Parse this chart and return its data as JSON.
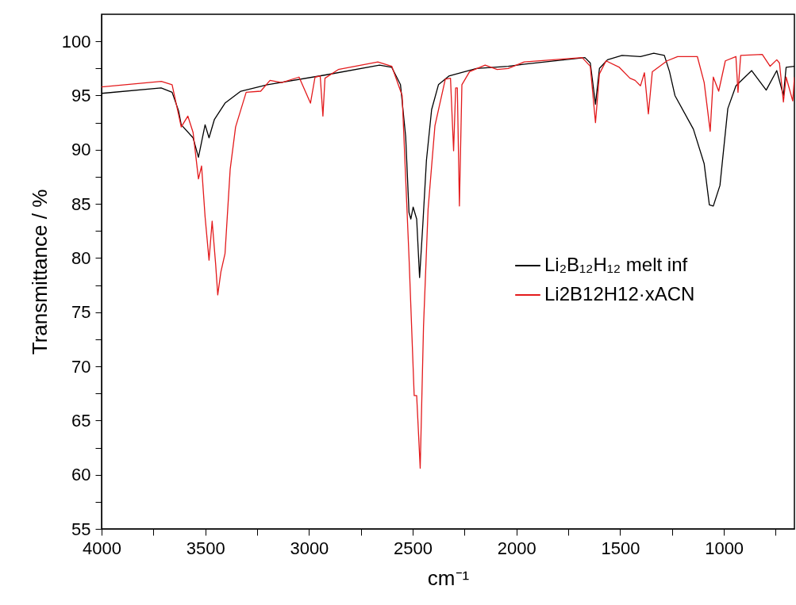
{
  "chart_data": {
    "type": "line",
    "xlabel": "cm⁻¹",
    "ylabel": "Transmittance / %",
    "xlim": [
      4000,
      660
    ],
    "ylim": [
      55,
      102.5
    ],
    "xticks": [
      4000,
      {
        "value": 3750,
        "label": null
      },
      3500,
      {
        "value": 3250,
        "label": null
      },
      3000,
      {
        "value": 2750,
        "label": null
      },
      2500,
      {
        "value": 2250,
        "label": null
      },
      2000,
      {
        "value": 1750,
        "label": null
      },
      1500,
      {
        "value": 1250,
        "label": null
      },
      1000,
      {
        "value": 750,
        "label": null
      }
    ],
    "yticks": [
      55,
      {
        "value": 57.5,
        "label": null
      },
      60,
      {
        "value": 62.5,
        "label": null
      },
      65,
      {
        "value": 67.5,
        "label": null
      },
      70,
      {
        "value": 72.5,
        "label": null
      },
      75,
      {
        "value": 77.5,
        "label": null
      },
      80,
      {
        "value": 82.5,
        "label": null
      },
      85,
      {
        "value": 87.5,
        "label": null
      },
      90,
      {
        "value": 92.5,
        "label": null
      },
      95,
      {
        "value": 97.5,
        "label": null
      },
      100
    ],
    "legend": "right",
    "series": [
      {
        "name": "Li₂B₁₂H₁₂ melt inf",
        "color": "#000000",
        "x": [
          4000,
          3713,
          3660,
          3629,
          3616,
          3559,
          3533,
          3501,
          3482,
          3456,
          3405,
          3329,
          3201,
          2920,
          2660,
          2601,
          2559,
          2534,
          2518,
          2509,
          2498,
          2481,
          2467,
          2451,
          2434,
          2409,
          2376,
          2326,
          2193,
          2040,
          1960,
          1670,
          1644,
          1619,
          1600,
          1561,
          1491,
          1402,
          1338,
          1287,
          1262,
          1236,
          1147,
          1095,
          1070,
          1051,
          1019,
          981,
          942,
          866,
          796,
          745,
          713,
          700,
          660
        ],
        "values": [
          95.2,
          95.7,
          95.3,
          93.6,
          92.3,
          91.1,
          89.3,
          92.3,
          91.1,
          92.8,
          94.3,
          95.4,
          96.0,
          96.9,
          97.8,
          97.6,
          96.0,
          91.2,
          84.2,
          83.6,
          84.7,
          83.6,
          78.2,
          83.2,
          89.0,
          93.7,
          96.0,
          96.8,
          97.5,
          97.7,
          97.9,
          98.5,
          98.0,
          94.2,
          97.5,
          98.3,
          98.7,
          98.6,
          98.9,
          98.7,
          97.2,
          95.0,
          91.9,
          88.7,
          84.9,
          84.8,
          86.7,
          93.8,
          95.9,
          97.3,
          95.5,
          97.3,
          95.0,
          97.6,
          97.7
        ]
      },
      {
        "name": "Li2B12H12·xACN",
        "color": "#e31a1c",
        "x": [
          4000,
          3712,
          3660,
          3616,
          3584,
          3559,
          3533,
          3518,
          3501,
          3482,
          3467,
          3450,
          3440,
          3425,
          3405,
          3380,
          3354,
          3303,
          3233,
          3188,
          3131,
          3048,
          2993,
          2971,
          2946,
          2933,
          2923,
          2859,
          2668,
          2601,
          2551,
          2518,
          2493,
          2481,
          2464,
          2448,
          2426,
          2393,
          2343,
          2318,
          2303,
          2293,
          2285,
          2275,
          2263,
          2226,
          2151,
          2093,
          2040,
          1963,
          1683,
          1644,
          1619,
          1600,
          1568,
          1504,
          1453,
          1428,
          1402,
          1383,
          1364,
          1345,
          1274,
          1223,
          1128,
          1095,
          1066,
          1051,
          1025,
          993,
          942,
          932,
          919,
          815,
          777,
          745,
          732,
          713,
          700,
          668,
          660
        ],
        "values": [
          95.8,
          96.3,
          96.0,
          92.1,
          93.1,
          91.6,
          87.3,
          88.5,
          83.8,
          79.8,
          83.4,
          79.4,
          76.6,
          78.7,
          80.4,
          88.2,
          92.1,
          95.3,
          95.4,
          96.4,
          96.2,
          96.7,
          94.3,
          96.7,
          96.8,
          93.1,
          96.6,
          97.4,
          98.1,
          97.7,
          95.0,
          80.1,
          67.3,
          67.3,
          60.6,
          73.7,
          84.5,
          92.2,
          96.5,
          96.6,
          89.9,
          95.7,
          95.7,
          84.8,
          96.0,
          97.2,
          97.8,
          97.4,
          97.5,
          98.1,
          98.5,
          97.7,
          92.5,
          97.0,
          98.2,
          97.6,
          96.6,
          96.4,
          95.9,
          97.1,
          93.3,
          97.2,
          98.2,
          98.6,
          98.6,
          96.2,
          91.7,
          96.7,
          95.4,
          98.2,
          98.6,
          95.3,
          98.7,
          98.8,
          97.7,
          98.3,
          98.0,
          94.4,
          96.7,
          94.5,
          96.7
        ]
      }
    ]
  }
}
